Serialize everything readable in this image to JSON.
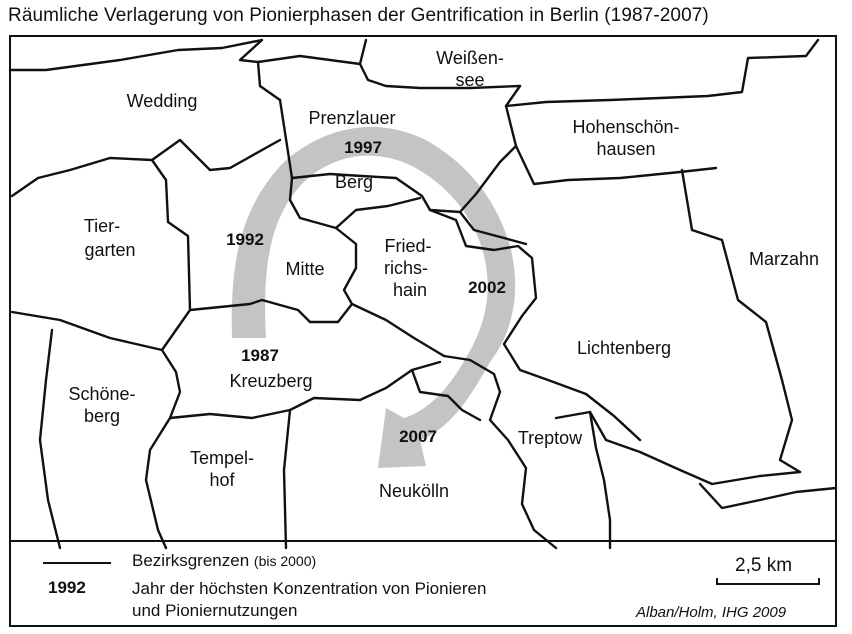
{
  "title": "Räumliche Verlagerung von Pionierphasen der Gentrification in Berlin (1987-2007)",
  "districts": {
    "wedding": [
      "Wedding"
    ],
    "weissensee": [
      "Weißen-",
      "see"
    ],
    "prenzlauer": [
      "Prenzlauer"
    ],
    "berg": [
      "Berg"
    ],
    "hohenschoenhausen": [
      "Hohenschön-",
      "hausen"
    ],
    "tiergarten": [
      "Tier-",
      "garten"
    ],
    "mitte": [
      "Mitte"
    ],
    "friedrichshain": [
      "Fried-",
      "richs-",
      "hain"
    ],
    "marzahn": [
      "Marzahn"
    ],
    "lichtenberg": [
      "Lichtenberg"
    ],
    "kreuzberg": [
      "Kreuzberg"
    ],
    "schoeneberg": [
      "Schöne-",
      "berg"
    ],
    "tempelhof": [
      "Tempel-",
      "hof"
    ],
    "treptow": [
      "Treptow"
    ],
    "neukoelln": [
      "Neukölln"
    ]
  },
  "years": {
    "y1987": "1987",
    "y1992": "1992",
    "y1997": "1997",
    "y2002": "2002",
    "y2007": "2007"
  },
  "arrow_color": "#c4c4c4",
  "legend": {
    "boundary_label": "Bezirksgrenzen",
    "boundary_note": "(bis 2000)",
    "year_example": "1992",
    "year_desc_line1": "Jahr der höchsten Konzentration von Pionieren",
    "year_desc_line2": "und Pioniernutzungen"
  },
  "scale": "2,5 km",
  "credit": "Alban/Holm, IHG 2009"
}
